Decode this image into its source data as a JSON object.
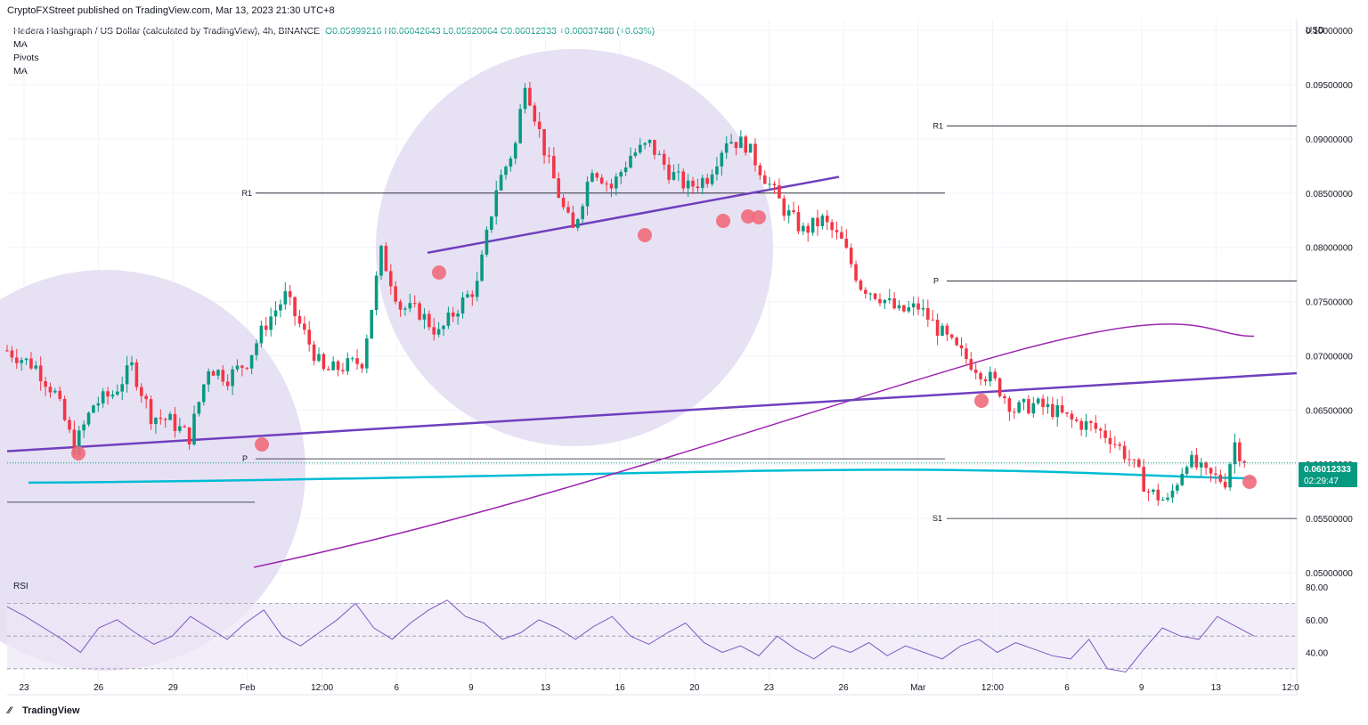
{
  "header": {
    "published": "CryptoFXStreet published on TradingView.com, Mar 13, 2023 21:30 UTC+8",
    "symbol": "Hedera Hashgraph / US Dollar (calculated by TradingView), 4h, BINANCE",
    "ohlc": "O0.05999216  H0.06042643  L0.05920064  C0.06012333  +0.00037488 (+0.63%)",
    "indicators": [
      "MA",
      "Pivots",
      "MA"
    ]
  },
  "price_axis": {
    "currency": "USD",
    "last_price": "0.06012333",
    "countdown": "02:29:47"
  },
  "rsi_label": "RSI",
  "footer": {
    "brand": "TradingView"
  },
  "colors": {
    "up": "#089981",
    "down": "#f23645",
    "trendline": "#6f3fbf",
    "ma_slow": "#00bcd4",
    "ma_fast": "#9c27b0",
    "highlight": "#e3dcf2",
    "marker": "#f06c7c",
    "rsi": "#7e57c2"
  },
  "chart_data": [
    {
      "type": "candlestick",
      "title": "Hedera Hashgraph / US Dollar (calculated by TradingView), 4h, BINANCE",
      "y_unit": "USD",
      "ylim": [
        0.05,
        0.101
      ],
      "y_ticks": [
        "0.10000000",
        "0.09500000",
        "0.09000000",
        "0.08500000",
        "0.08000000",
        "0.07500000",
        "0.07000000",
        "0.06500000",
        "0.06000000",
        "0.05500000",
        "0.05000000"
      ],
      "x_ticks": [
        "23",
        "26",
        "29",
        "Feb",
        "12:00",
        "6",
        "9",
        "13",
        "16",
        "20",
        "23",
        "26",
        "Mar",
        "12:00",
        "6",
        "9",
        "13",
        "12:0"
      ],
      "close_path": [
        [
          0,
          0.0705
        ],
        [
          6,
          0.069
        ],
        [
          10,
          0.0665
        ],
        [
          14,
          0.0615
        ],
        [
          18,
          0.0655
        ],
        [
          22,
          0.0665
        ],
        [
          26,
          0.069
        ],
        [
          30,
          0.0645
        ],
        [
          34,
          0.064
        ],
        [
          38,
          0.0625
        ],
        [
          42,
          0.069
        ],
        [
          46,
          0.068
        ],
        [
          50,
          0.0695
        ],
        [
          54,
          0.073
        ],
        [
          58,
          0.0755
        ],
        [
          62,
          0.072
        ],
        [
          66,
          0.0685
        ],
        [
          70,
          0.069
        ],
        [
          74,
          0.0695
        ],
        [
          78,
          0.0795
        ],
        [
          82,
          0.0745
        ],
        [
          86,
          0.074
        ],
        [
          90,
          0.072
        ],
        [
          94,
          0.0745
        ],
        [
          98,
          0.0765
        ],
        [
          102,
          0.0855
        ],
        [
          106,
          0.0895
        ],
        [
          108,
          0.0955
        ],
        [
          112,
          0.089
        ],
        [
          116,
          0.0835
        ],
        [
          118,
          0.0815
        ],
        [
          122,
          0.0875
        ],
        [
          126,
          0.0855
        ],
        [
          130,
          0.0885
        ],
        [
          134,
          0.0895
        ],
        [
          138,
          0.087
        ],
        [
          142,
          0.0855
        ],
        [
          146,
          0.0865
        ],
        [
          150,
          0.09
        ],
        [
          154,
          0.0895
        ],
        [
          158,
          0.0865
        ],
        [
          162,
          0.0835
        ],
        [
          166,
          0.0815
        ],
        [
          170,
          0.0825
        ],
        [
          174,
          0.0805
        ],
        [
          178,
          0.0765
        ],
        [
          182,
          0.0755
        ],
        [
          186,
          0.074
        ],
        [
          190,
          0.0745
        ],
        [
          194,
          0.0725
        ],
        [
          198,
          0.0705
        ],
        [
          202,
          0.069
        ],
        [
          206,
          0.0675
        ],
        [
          210,
          0.065
        ],
        [
          214,
          0.0655
        ],
        [
          218,
          0.065
        ],
        [
          222,
          0.064
        ],
        [
          226,
          0.0635
        ],
        [
          230,
          0.0625
        ],
        [
          234,
          0.0605
        ],
        [
          238,
          0.0575
        ],
        [
          242,
          0.0565
        ],
        [
          246,
          0.0605
        ],
        [
          250,
          0.059
        ],
        [
          254,
          0.0585
        ],
        [
          256,
          0.062
        ],
        [
          258,
          0.06012
        ]
      ],
      "overlays": {
        "pivots_left": {
          "R1": 0.085,
          "P": 0.0605,
          "S1": 0.0565
        },
        "pivots_right": {
          "R1": 0.0912,
          "P": 0.0769,
          "S1": 0.055
        },
        "ma_slow_start": 0.0583,
        "ma_slow_end": 0.0587,
        "ma_fast_start": 0.0505,
        "ma_fast_end": 0.0718,
        "trendline_lower": [
          0.0612,
          0.0684
        ],
        "trendline_upper": [
          0.0795,
          0.0865
        ]
      }
    },
    {
      "type": "line",
      "title": "RSI",
      "ylim": [
        25,
        85
      ],
      "y_ticks": [
        "80.00",
        "60.00",
        "40.00"
      ],
      "bands": [
        70,
        50,
        30
      ],
      "values": [
        68,
        62,
        55,
        48,
        40,
        55,
        60,
        52,
        45,
        50,
        62,
        55,
        48,
        58,
        66,
        50,
        44,
        52,
        60,
        70,
        55,
        48,
        58,
        66,
        72,
        62,
        58,
        48,
        52,
        60,
        55,
        48,
        56,
        62,
        50,
        45,
        52,
        58,
        46,
        40,
        44,
        38,
        50,
        42,
        36,
        44,
        40,
        46,
        38,
        44,
        40,
        36,
        44,
        48,
        40,
        46,
        42,
        38,
        36,
        48,
        30,
        28,
        42,
        55,
        50,
        48,
        62,
        56,
        50
      ]
    }
  ]
}
